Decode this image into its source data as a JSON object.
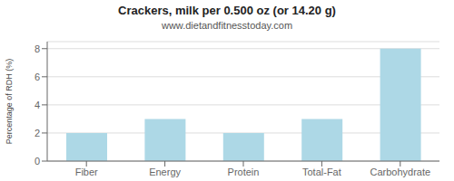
{
  "chart_data": {
    "type": "bar",
    "title": "Crackers, milk per 0.500 oz (or 14.20 g)",
    "subtitle": "www.dietandfitnesstoday.com",
    "categories": [
      "Fiber",
      "Energy",
      "Protein",
      "Total-Fat",
      "Carbohydrate"
    ],
    "values": [
      2.0,
      3.0,
      2.0,
      3.0,
      8.0
    ],
    "color": "#add8e6",
    "ylabel": "Percentage of RDH (%)",
    "ylim": [
      0,
      8.5
    ],
    "yticks": [
      0,
      2,
      4,
      6,
      8
    ],
    "grid": true
  }
}
